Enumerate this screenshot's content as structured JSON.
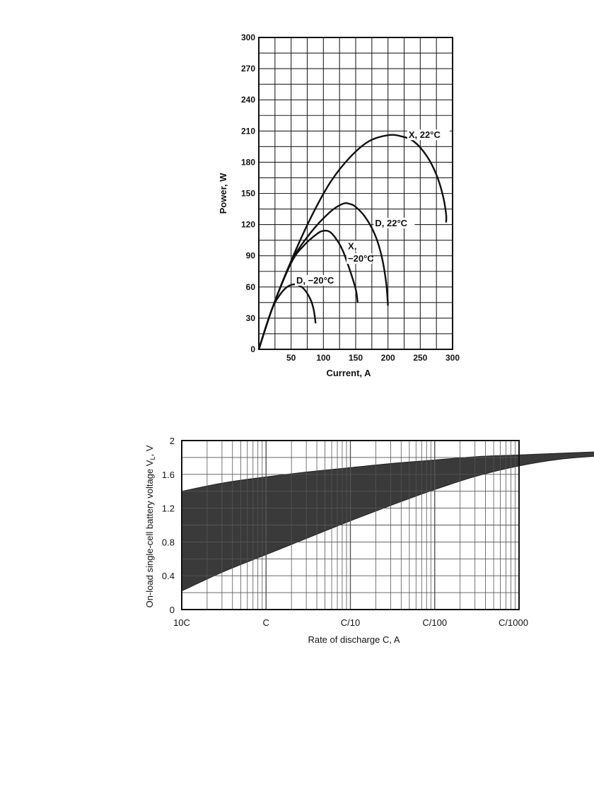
{
  "chart_data": [
    {
      "type": "line",
      "xlabel": "Current, A",
      "ylabel": "Power, W",
      "xlim": [
        0,
        300
      ],
      "ylim": [
        0,
        300
      ],
      "x_ticks": [
        "50",
        "100",
        "150",
        "200",
        "250",
        "300"
      ],
      "y_ticks": [
        "0",
        "30",
        "60",
        "90",
        "120",
        "150",
        "180",
        "210",
        "240",
        "270",
        "300"
      ],
      "grid": true,
      "series": [
        {
          "name": "X, 22°C",
          "x": [
            0,
            20,
            50,
            80,
            110,
            140,
            170,
            200,
            220,
            240,
            260,
            275,
            285,
            290,
            290
          ],
          "y": [
            0,
            38,
            85,
            126,
            160,
            184,
            200,
            206,
            205,
            200,
            186,
            168,
            148,
            130,
            122
          ]
        },
        {
          "name": "D, 22°C",
          "x": [
            0,
            20,
            50,
            80,
            110,
            130,
            140,
            150,
            165,
            180,
            190,
            197,
            200
          ],
          "y": [
            0,
            38,
            84,
            112,
            132,
            140,
            140,
            137,
            127,
            110,
            90,
            65,
            42
          ]
        },
        {
          "name": "X, −20°C",
          "x": [
            0,
            20,
            50,
            70,
            90,
            100,
            110,
            120,
            130,
            140,
            150,
            153
          ],
          "y": [
            0,
            38,
            83,
            100,
            111,
            114,
            113,
            106,
            95,
            78,
            58,
            45
          ]
        },
        {
          "name": "D, −20°C",
          "x": [
            0,
            20,
            30,
            40,
            50,
            60,
            70,
            80,
            85,
            88
          ],
          "y": [
            0,
            38,
            50,
            58,
            62,
            62,
            58,
            48,
            38,
            25
          ]
        }
      ],
      "annotations": [
        "X, 22°C",
        "D, 22°C",
        "X,",
        "−20°C",
        "D, −20°C"
      ]
    },
    {
      "type": "area",
      "xlabel": "Rate of discharge C, A",
      "ylabel": "On-load single-cell battery voltage V",
      "ylabel_subscript": "L",
      "ylabel_unit": ", V",
      "x_scale": "log",
      "x_ticks": [
        "10C",
        "C",
        "C/10",
        "C/100",
        "C/1000"
      ],
      "y_ticks": [
        "0",
        "0.4",
        "0.8",
        "1.2",
        "1.6",
        "2"
      ],
      "ylim": [
        0,
        2
      ],
      "grid": true,
      "fill_color": "#3a3a3a",
      "band": {
        "x_decade": [
          0,
          0.5,
          1,
          1.5,
          2,
          2.5,
          3,
          3.5,
          4,
          4.5,
          5
        ],
        "upper": [
          1.4,
          1.5,
          1.57,
          1.63,
          1.68,
          1.73,
          1.77,
          1.81,
          1.83,
          1.85,
          1.87
        ],
        "lower": [
          0.22,
          0.45,
          0.65,
          0.85,
          1.05,
          1.24,
          1.42,
          1.58,
          1.7,
          1.78,
          1.82
        ]
      }
    }
  ]
}
